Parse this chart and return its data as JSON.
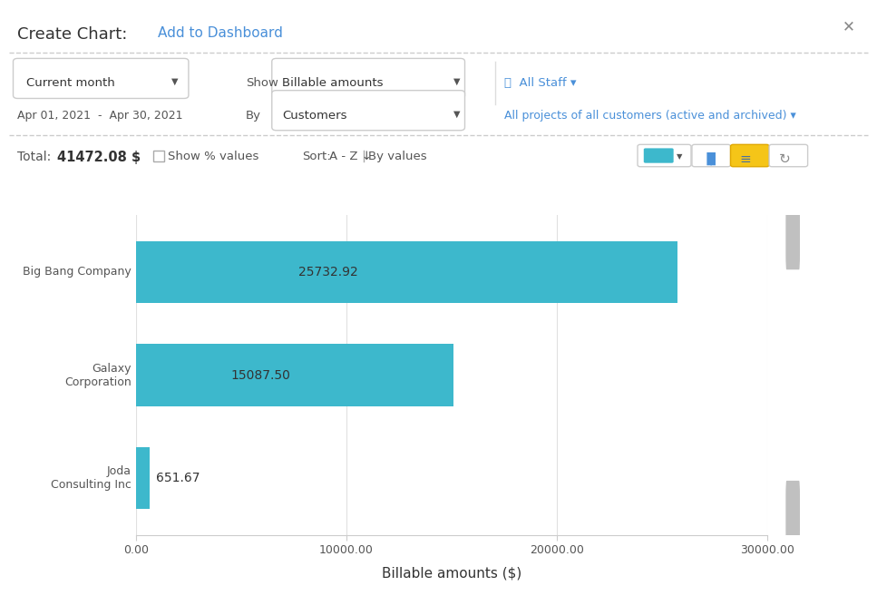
{
  "categories": [
    "Big Bang Company",
    "Galaxy\nCorporation",
    "Joda\nConsulting Inc"
  ],
  "values": [
    25732.92,
    15087.5,
    651.67
  ],
  "bar_color": "#3db8cc",
  "bar_labels": [
    "25732.92",
    "15087.50",
    "651.67"
  ],
  "xlabel": "Billable amounts ($)",
  "xlim": [
    0,
    30000
  ],
  "xticks": [
    0,
    10000,
    20000,
    30000
  ],
  "xtick_labels": [
    "0.00",
    "10000.00",
    "20000.00",
    "30000.00"
  ],
  "background_color": "#ffffff",
  "plot_bg_color": "#ffffff",
  "grid_color": "#e0e0e0",
  "bar_label_fontsize": 10,
  "axis_label_fontsize": 11,
  "tick_label_fontsize": 9,
  "ytick_label_fontsize": 9,
  "fig_width": 9.67,
  "fig_height": 6.78,
  "bar_height": 0.6,
  "header_title": "Create Chart:",
  "header_link": "Add to Dashboard",
  "filter_date": "Apr 01, 2021  -  Apr 30, 2021",
  "filter_show": "Show",
  "filter_by": "By",
  "filter_show_val": "Billable amounts",
  "filter_by_val": "Customers",
  "filter_month": "Current month",
  "filter_staff": "All Staff",
  "filter_projects": "All projects of all customers (active and archived)",
  "total_label": "Total:",
  "total_value": "41472.08 $",
  "show_pct": "Show % values",
  "sort_label": "Sort:",
  "sort_val": "A - Z",
  "sort_by": "By values"
}
